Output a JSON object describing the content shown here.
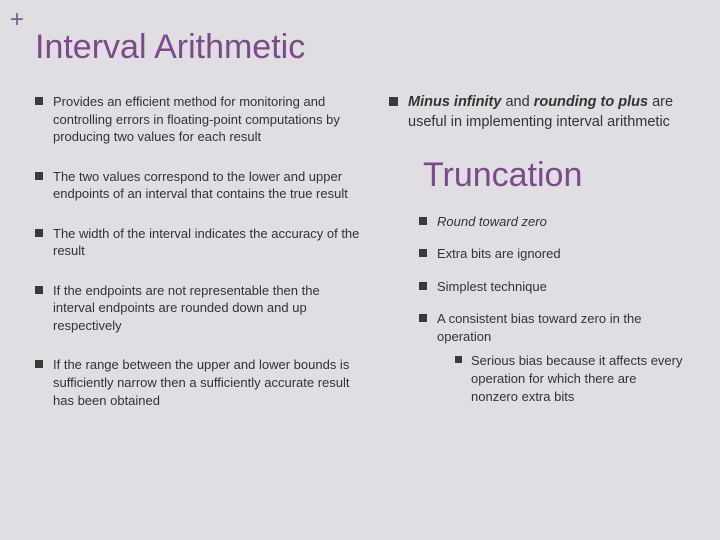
{
  "colors": {
    "background": "#e0dde3",
    "heading": "#7b4a8a",
    "plus": "#7b5a8e",
    "bullet_square": "#3a3a3a",
    "text": "#333333"
  },
  "plus_symbol": "+",
  "title": "Interval Arithmetic",
  "left_bullets": [
    "Provides an efficient method for monitoring and controlling errors in floating-point computations by producing two values for each result",
    "The two values correspond to the lower and upper endpoints of an interval that contains the true result",
    "The width of the interval indicates the accuracy of the result",
    "If the endpoints are not representable then the interval endpoints are rounded down and up respectively",
    "If the range between the upper and lower bounds is sufficiently narrow then a sufficiently accurate result has been obtained"
  ],
  "right_top_parts": {
    "p1_italic": "Minus infinity",
    "p2": " and ",
    "p3_bold_italic": "rounding to plus",
    "p4": " are useful in implementing interval arithmetic"
  },
  "heading2": "Truncation",
  "sub_bullets": [
    {
      "text": "Round toward zero",
      "italic": true
    },
    {
      "text": "Extra bits are ignored",
      "italic": false
    },
    {
      "text": "Simplest technique",
      "italic": false
    }
  ],
  "sub4": {
    "main": "A consistent bias toward zero in the operation",
    "sub": "Serious bias because it affects every operation for which there are nonzero extra bits"
  },
  "typography": {
    "title_fontsize": 34,
    "body_fontsize": 13,
    "right_top_fontsize": 14.5
  }
}
